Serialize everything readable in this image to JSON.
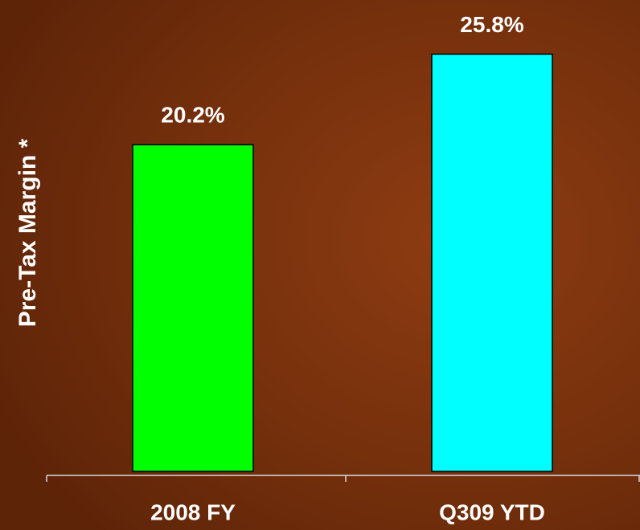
{
  "chart_data": {
    "type": "bar",
    "ylabel": "Pre-Tax Margin *",
    "categories": [
      "2008 FY",
      "Q309 YTD"
    ],
    "values": [
      20.2,
      25.8
    ],
    "value_labels": [
      "20.2%",
      "25.8%"
    ],
    "colors": [
      "#00ff00",
      "#00ffff"
    ],
    "ylim": [
      0,
      29
    ],
    "grid": false
  }
}
